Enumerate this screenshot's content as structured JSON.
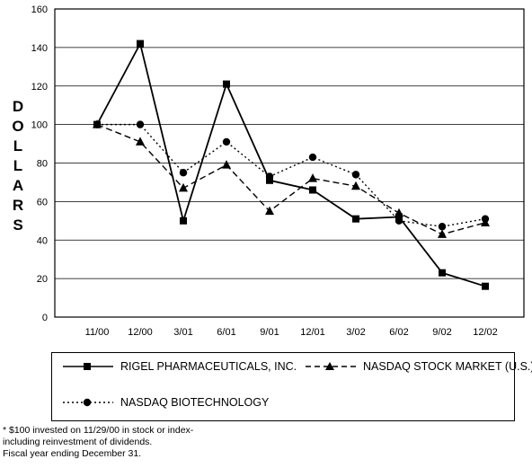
{
  "chart_data": {
    "type": "line",
    "title": "",
    "ylabel": "DOLLARS",
    "xlabel": "",
    "ylim": [
      0,
      160
    ],
    "yticks": [
      0,
      20,
      40,
      60,
      80,
      100,
      120,
      140,
      160
    ],
    "grid": "horizontal",
    "categories": [
      "11/00",
      "12/00",
      "3/01",
      "6/01",
      "9/01",
      "12/01",
      "3/02",
      "6/02",
      "9/02",
      "12/02"
    ],
    "series": [
      {
        "name": "RIGEL PHARMACEUTICALS, INC.",
        "marker": "square",
        "line": "solid",
        "values": [
          100,
          142,
          50,
          121,
          71,
          66,
          51,
          52,
          23,
          16
        ]
      },
      {
        "name": "NASDAQ STOCK MARKET (U.S.)",
        "marker": "triangle",
        "line": "dashed",
        "values": [
          100,
          91,
          67,
          79,
          55,
          72,
          68,
          54,
          43,
          49
        ]
      },
      {
        "name": "NASDAQ BIOTECHNOLOGY",
        "marker": "circle",
        "line": "dotted",
        "values": [
          100,
          100,
          75,
          91,
          73,
          83,
          74,
          50,
          47,
          51
        ]
      }
    ]
  },
  "legend": {
    "rigel": "RIGEL PHARMACEUTICALS, INC.",
    "nasdaq": "NASDAQ STOCK MARKET (U.S.)",
    "biotech": "NASDAQ BIOTECHNOLOGY"
  },
  "footnote": {
    "line1": "* $100 invested on 11/29/00 in stock or index-",
    "line2": "including reinvestment of dividends.",
    "line3": "Fiscal year ending December 31."
  }
}
